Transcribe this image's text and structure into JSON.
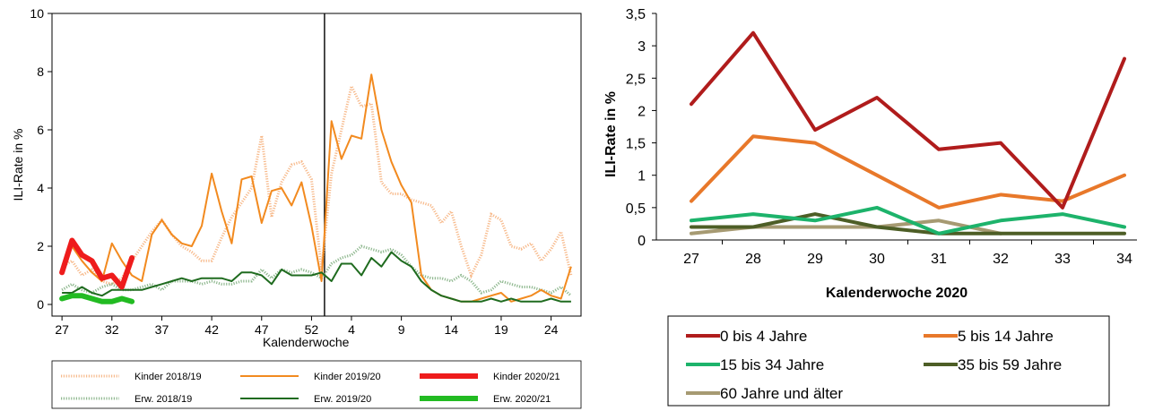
{
  "chart_data": [
    {
      "type": "line",
      "title": "",
      "xlabel": "Kalenderwoche",
      "ylabel": "ILI-Rate in %",
      "ylim": [
        0,
        10
      ],
      "yticks": [
        "0",
        "2",
        "4",
        "6",
        "8",
        "10"
      ],
      "xticks": [
        "27",
        "32",
        "37",
        "42",
        "47",
        "52",
        "4",
        "9",
        "14",
        "19",
        "24"
      ],
      "grid": false,
      "legend_position": "bottom",
      "season_break_after": "52",
      "series": [
        {
          "name": "Kinder 2018/19",
          "color": "#f7b98a",
          "style": "dotted",
          "x": [
            27,
            28,
            29,
            30,
            31,
            32,
            33,
            34,
            35,
            36,
            37,
            38,
            39,
            40,
            41,
            42,
            43,
            44,
            45,
            46,
            47,
            48,
            49,
            50,
            51,
            52,
            53,
            54,
            55,
            56,
            57,
            58,
            59,
            60,
            61,
            62,
            63,
            64,
            65,
            66,
            67,
            68,
            69,
            70,
            71,
            72,
            73,
            74,
            75,
            76,
            77,
            78
          ],
          "values": [
            1.3,
            1.5,
            1.0,
            1.2,
            0.8,
            0.7,
            0.9,
            1.5,
            2.0,
            2.5,
            2.9,
            2.4,
            2.0,
            1.8,
            1.5,
            1.5,
            2.3,
            3.0,
            3.5,
            4.0,
            5.8,
            3.0,
            4.2,
            4.8,
            4.9,
            4.3,
            1.2,
            4.5,
            6.0,
            7.5,
            6.8,
            6.9,
            4.2,
            3.8,
            3.8,
            3.6,
            3.5,
            3.4,
            2.8,
            3.2,
            2.0,
            1.0,
            1.7,
            3.1,
            2.9,
            2.0,
            1.9,
            2.1,
            1.5,
            1.9,
            2.5,
            1.0
          ]
        },
        {
          "name": "Kinder 2019/20",
          "color": "#f28a1f",
          "style": "solid",
          "x": [
            27,
            28,
            29,
            30,
            31,
            32,
            33,
            34,
            35,
            36,
            37,
            38,
            39,
            40,
            41,
            42,
            43,
            44,
            45,
            46,
            47,
            48,
            49,
            50,
            51,
            52,
            53,
            54,
            55,
            56,
            57,
            58,
            59,
            60,
            61,
            62,
            63,
            64,
            65,
            66,
            67,
            68,
            69,
            70,
            71,
            72,
            73,
            74,
            75,
            76,
            77,
            78
          ],
          "values": [
            1.2,
            2.0,
            1.5,
            1.1,
            0.8,
            2.1,
            1.5,
            1.0,
            0.8,
            2.4,
            2.9,
            2.4,
            2.1,
            2.0,
            2.7,
            4.5,
            3.2,
            2.1,
            4.3,
            4.4,
            2.8,
            3.9,
            4.0,
            3.4,
            4.2,
            2.7,
            0.8,
            6.3,
            5.0,
            5.8,
            5.7,
            7.9,
            6.0,
            4.9,
            4.1,
            3.5,
            1.0,
            0.5,
            0.3,
            0.2,
            0.1,
            0.1,
            0.2,
            0.3,
            0.4,
            0.1,
            0.2,
            0.3,
            0.5,
            0.3,
            0.2,
            1.3
          ]
        },
        {
          "name": "Kinder 2020/21",
          "color": "#ee1c1c",
          "style": "thick",
          "x": [
            27,
            28,
            29,
            30,
            31,
            32,
            33,
            34
          ],
          "values": [
            1.1,
            2.2,
            1.7,
            1.5,
            0.9,
            1.0,
            0.6,
            1.6
          ]
        },
        {
          "name": "Erw. 2018/19",
          "color": "#8fb88f",
          "style": "dotted",
          "x": [
            27,
            28,
            29,
            30,
            31,
            32,
            33,
            34,
            35,
            36,
            37,
            38,
            39,
            40,
            41,
            42,
            43,
            44,
            45,
            46,
            47,
            48,
            49,
            50,
            51,
            52,
            53,
            54,
            55,
            56,
            57,
            58,
            59,
            60,
            61,
            62,
            63,
            64,
            65,
            66,
            67,
            68,
            69,
            70,
            71,
            72,
            73,
            74,
            75,
            76,
            77,
            78
          ],
          "values": [
            0.5,
            0.7,
            0.5,
            0.4,
            0.6,
            0.7,
            0.5,
            0.5,
            0.6,
            0.7,
            0.5,
            0.8,
            0.8,
            0.8,
            0.7,
            0.8,
            0.7,
            0.7,
            0.8,
            0.8,
            1.2,
            0.9,
            1.2,
            1.1,
            1.2,
            1.1,
            0.9,
            1.4,
            1.6,
            1.7,
            2.0,
            1.9,
            1.8,
            1.9,
            1.7,
            1.3,
            1.0,
            0.9,
            0.9,
            0.8,
            1.0,
            0.8,
            0.4,
            0.5,
            0.8,
            0.7,
            0.6,
            0.6,
            0.5,
            0.4,
            0.6,
            0.3
          ]
        },
        {
          "name": "Erw. 2019/20",
          "color": "#1f6b1f",
          "style": "solid",
          "x": [
            27,
            28,
            29,
            30,
            31,
            32,
            33,
            34,
            35,
            36,
            37,
            38,
            39,
            40,
            41,
            42,
            43,
            44,
            45,
            46,
            47,
            48,
            49,
            50,
            51,
            52,
            53,
            54,
            55,
            56,
            57,
            58,
            59,
            60,
            61,
            62,
            63,
            64,
            65,
            66,
            67,
            68,
            69,
            70,
            71,
            72,
            73,
            74,
            75,
            76,
            77,
            78
          ],
          "values": [
            0.4,
            0.4,
            0.6,
            0.4,
            0.3,
            0.5,
            0.5,
            0.5,
            0.5,
            0.6,
            0.7,
            0.8,
            0.9,
            0.8,
            0.9,
            0.9,
            0.9,
            0.8,
            1.1,
            1.1,
            1.0,
            0.7,
            1.2,
            1.0,
            1.0,
            1.0,
            1.1,
            0.8,
            1.4,
            1.4,
            1.0,
            1.6,
            1.3,
            1.8,
            1.5,
            1.3,
            0.8,
            0.5,
            0.3,
            0.2,
            0.1,
            0.1,
            0.1,
            0.2,
            0.1,
            0.2,
            0.1,
            0.1,
            0.1,
            0.2,
            0.1,
            0.1
          ]
        },
        {
          "name": "Erw. 2020/21",
          "color": "#22bb22",
          "style": "thick",
          "x": [
            27,
            28,
            29,
            30,
            31,
            32,
            33,
            34
          ],
          "values": [
            0.2,
            0.3,
            0.3,
            0.2,
            0.1,
            0.1,
            0.2,
            0.1
          ]
        }
      ]
    },
    {
      "type": "line",
      "title": "",
      "xlabel": "Kalenderwoche 2020",
      "ylabel": "ILI-Rate in %",
      "ylim": [
        0,
        3.5
      ],
      "yticks": [
        "0",
        "0,5",
        "1",
        "1,5",
        "2",
        "2,5",
        "3",
        "3,5"
      ],
      "categories": [
        "27",
        "28",
        "29",
        "30",
        "31",
        "32",
        "33",
        "34"
      ],
      "grid": false,
      "legend_position": "bottom",
      "series": [
        {
          "name": "0 bis 4 Jahre",
          "color": "#b01c1c",
          "values": [
            2.1,
            3.2,
            1.7,
            2.2,
            1.4,
            1.5,
            0.5,
            2.8
          ]
        },
        {
          "name": "5 bis 14 Jahre",
          "color": "#e8782a",
          "values": [
            0.6,
            1.6,
            1.5,
            1.0,
            0.5,
            0.7,
            0.6,
            1.0
          ]
        },
        {
          "name": "15 bis 34 Jahre",
          "color": "#1db36b",
          "values": [
            0.3,
            0.4,
            0.3,
            0.5,
            0.1,
            0.3,
            0.4,
            0.2
          ]
        },
        {
          "name": "35 bis 59 Jahre",
          "color": "#4d5e26",
          "values": [
            0.2,
            0.2,
            0.4,
            0.2,
            0.1,
            0.1,
            0.1,
            0.1
          ]
        },
        {
          "name": "60 Jahre und älter",
          "color": "#a69a72",
          "values": [
            0.1,
            0.2,
            0.2,
            0.2,
            0.3,
            0.1,
            null,
            null
          ]
        }
      ]
    }
  ]
}
